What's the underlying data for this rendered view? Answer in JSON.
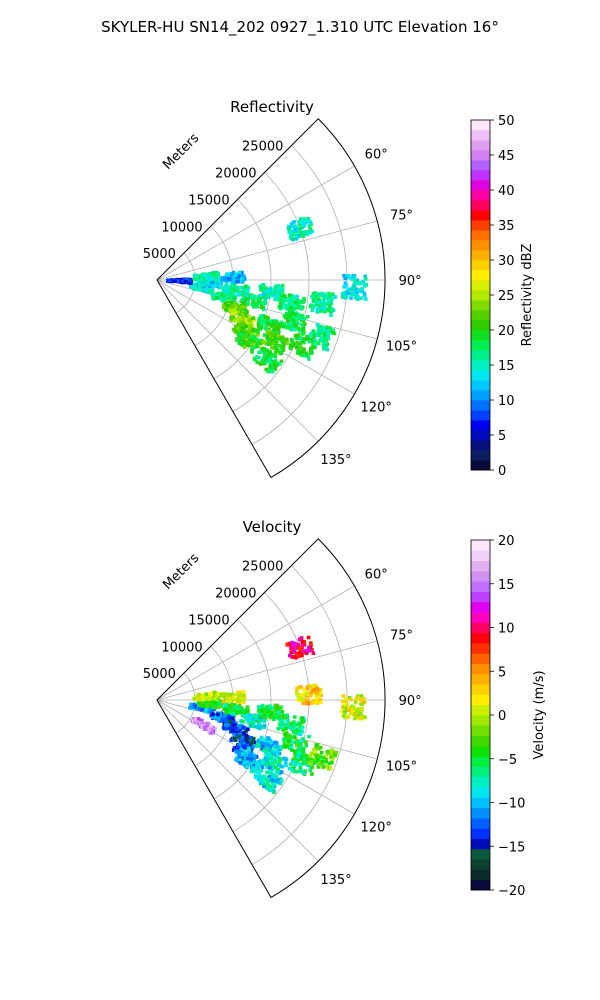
{
  "suptitle": "SKYLER-HU  SN14_202  0927_1.310 UTC Elevation 16°",
  "chart_data": [
    {
      "type": "polar-sector",
      "title": "Reflectivity",
      "range_label": "Meters",
      "range_ticks": [
        5000,
        10000,
        15000,
        20000,
        25000
      ],
      "rmax": 30000,
      "azimuth_range_deg": [
        45,
        150
      ],
      "azimuth_ticks": [
        "60°",
        "75°",
        "90°",
        "105°",
        "120°",
        "135°"
      ],
      "grid": true,
      "colorbar": {
        "label": "Reflectivity dBZ",
        "min": 0,
        "max": 50,
        "ticks": [
          "0",
          "5",
          "10",
          "15",
          "20",
          "25",
          "30",
          "35",
          "40",
          "45",
          "50"
        ],
        "colors": [
          "#0a0a3c",
          "#0b1e62",
          "#08107e",
          "#000dbd",
          "#0000f0",
          "#0040ff",
          "#0070ff",
          "#00a0ff",
          "#00c8ff",
          "#00e5f0",
          "#00f0c0",
          "#00f090",
          "#00f050",
          "#10e020",
          "#30cc00",
          "#55d000",
          "#80dc00",
          "#b0e800",
          "#d8f000",
          "#ffee00",
          "#ffd000",
          "#ffb000",
          "#ff9000",
          "#ff7000",
          "#ff4000",
          "#ff0000",
          "#ff0060",
          "#ff00a0",
          "#e000e0",
          "#c030ff",
          "#b060ff",
          "#d080f0",
          "#e0a0f0",
          "#f0c0f8",
          "#fbe6fb"
        ]
      },
      "echo_cells_deg_m": [
        {
          "az": 100,
          "r": 6000,
          "v": 14
        },
        {
          "az": 105,
          "r": 9000,
          "v": 17
        },
        {
          "az": 110,
          "r": 11000,
          "v": 22
        },
        {
          "az": 115,
          "r": 12500,
          "v": 24
        },
        {
          "az": 120,
          "r": 13500,
          "v": 22
        },
        {
          "az": 112,
          "r": 16000,
          "v": 19
        },
        {
          "az": 102,
          "r": 13000,
          "v": 18
        },
        {
          "az": 97,
          "r": 10500,
          "v": 16
        },
        {
          "az": 94,
          "r": 7000,
          "v": 13
        },
        {
          "az": 96,
          "r": 15000,
          "v": 15
        },
        {
          "az": 100,
          "r": 18000,
          "v": 17
        },
        {
          "az": 107,
          "r": 19000,
          "v": 18
        },
        {
          "az": 114,
          "r": 21000,
          "v": 19
        },
        {
          "az": 109,
          "r": 23000,
          "v": 17
        },
        {
          "az": 118,
          "r": 17500,
          "v": 21
        },
        {
          "az": 124,
          "r": 14500,
          "v": 20
        },
        {
          "az": 126,
          "r": 18000,
          "v": 18
        },
        {
          "az": 92,
          "r": 3000,
          "v": 7
        },
        {
          "az": 88,
          "r": 10000,
          "v": 11
        },
        {
          "az": 86,
          "r": 6500,
          "v": 16
        },
        {
          "az": 70,
          "r": 20000,
          "v": 15
        },
        {
          "az": 92,
          "r": 26000,
          "v": 14
        },
        {
          "az": 98,
          "r": 22000,
          "v": 16
        }
      ]
    },
    {
      "type": "polar-sector",
      "title": "Velocity",
      "range_label": "Meters",
      "range_ticks": [
        5000,
        10000,
        15000,
        20000,
        25000
      ],
      "rmax": 30000,
      "azimuth_range_deg": [
        45,
        150
      ],
      "azimuth_ticks": [
        "60°",
        "75°",
        "90°",
        "105°",
        "120°",
        "135°"
      ],
      "grid": true,
      "colorbar": {
        "label": "Velocity (m/s)",
        "min": -20,
        "max": 20,
        "ticks": [
          "−20",
          "−15",
          "−10",
          "−5",
          "0",
          "5",
          "10",
          "15",
          "20"
        ],
        "colors": [
          "#0a0a3c",
          "#0b2a2a",
          "#0b4030",
          "#0b5a40",
          "#000dbd",
          "#0030ff",
          "#0060ff",
          "#0090ff",
          "#00c0ff",
          "#00e5f0",
          "#00f0c0",
          "#00f080",
          "#00f040",
          "#10e000",
          "#40d800",
          "#70e000",
          "#a0e800",
          "#c8f000",
          "#ffee00",
          "#ffd000",
          "#ffb000",
          "#ff9000",
          "#ff6000",
          "#ff3000",
          "#ff0000",
          "#ff0060",
          "#ff00c0",
          "#e000f0",
          "#c040ff",
          "#c070ff",
          "#d090f0",
          "#e0b0f0",
          "#f0d0f8",
          "#fbe6fb"
        ]
      },
      "echo_cells_deg_m": [
        {
          "az": 100,
          "r": 6000,
          "v": -11
        },
        {
          "az": 105,
          "r": 9000,
          "v": -12
        },
        {
          "az": 110,
          "r": 11000,
          "v": -13
        },
        {
          "az": 115,
          "r": 12500,
          "v": -14
        },
        {
          "az": 120,
          "r": 13500,
          "v": -12
        },
        {
          "az": 112,
          "r": 16000,
          "v": -9
        },
        {
          "az": 102,
          "r": 13000,
          "v": -8
        },
        {
          "az": 97,
          "r": 10500,
          "v": -6
        },
        {
          "az": 94,
          "r": 7000,
          "v": -4
        },
        {
          "az": 96,
          "r": 15000,
          "v": -5
        },
        {
          "az": 100,
          "r": 18000,
          "v": -6
        },
        {
          "az": 107,
          "r": 19000,
          "v": -5
        },
        {
          "az": 114,
          "r": 21000,
          "v": -6
        },
        {
          "az": 109,
          "r": 23000,
          "v": -2
        },
        {
          "az": 118,
          "r": 17500,
          "v": -8
        },
        {
          "az": 124,
          "r": 14500,
          "v": -10
        },
        {
          "az": 126,
          "r": 18000,
          "v": -9
        },
        {
          "az": 118,
          "r": 7000,
          "v": 16
        },
        {
          "az": 88,
          "r": 10000,
          "v": 1
        },
        {
          "az": 86,
          "r": 6500,
          "v": 0
        },
        {
          "az": 88,
          "r": 20000,
          "v": 3
        },
        {
          "az": 92,
          "r": 26000,
          "v": 1
        },
        {
          "az": 70,
          "r": 20000,
          "v": 10
        }
      ]
    }
  ]
}
